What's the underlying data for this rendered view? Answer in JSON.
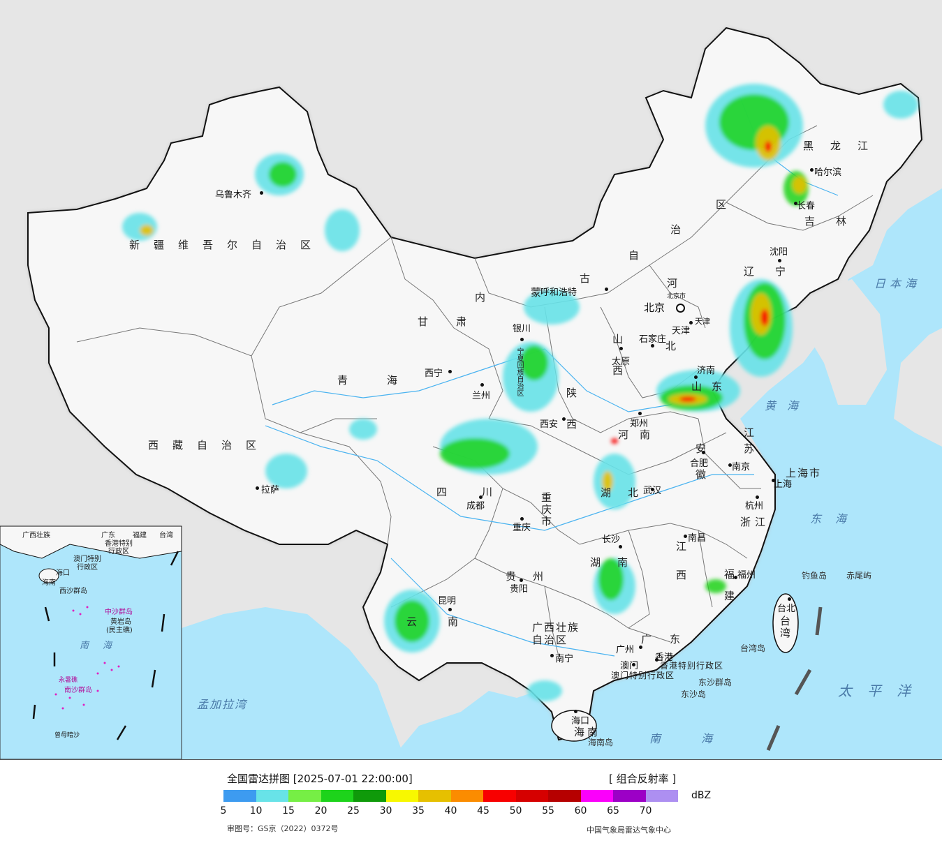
{
  "colors": {
    "ocean": "#aee6fb",
    "land_outside": "#e6e6e6",
    "china_land": "#f7f7f7",
    "border": "#111111",
    "province_line": "#777777"
  },
  "map": {
    "provinces": {
      "xinjiang": "新疆维吾尔自治区",
      "tibet": "西藏自治区",
      "qinghai": "青海",
      "gansu": "甘肃",
      "inner_mongolia_a": "内",
      "inner_mongolia_b": "蒙",
      "inner_mongolia_c": "古",
      "inner_mongolia_d": "自",
      "inner_mongolia_e": "治",
      "inner_mongolia_f": "区",
      "heilongjiang": "黑龙江",
      "jilin": "吉林",
      "liaoning": "辽宁",
      "hebei_a": "河",
      "hebei_b": "北",
      "shanxi": "山西",
      "shaanxi": "陕西",
      "ningxia": "宁夏回族自治区",
      "shandong": "山东",
      "henan": "河南",
      "jiangsu": "江苏",
      "anhui": "安徽",
      "shanghai": "上海市",
      "zhejiang": "浙江",
      "sichuan": "四川",
      "chongqing": "重庆市",
      "hubei": "湖北",
      "hunan": "湖南",
      "jiangxi": "江西",
      "fujian": "福建",
      "guizhou": "贵州",
      "yunnan": "云南",
      "guangxi": "广西壮族自治区",
      "guangdong": "广东",
      "hainan": "海南",
      "taiwan": "台湾",
      "hk": "香港特别行政区",
      "macau": "澳门特别行政区",
      "tianjin_short": "天津",
      "beijing_prov": "北京"
    },
    "cities": {
      "urumqi": "乌鲁木齐",
      "lhasa": "拉萨",
      "xining": "西宁",
      "lanzhou": "兰州",
      "yinchuan": "银川",
      "hohhot": "呼和浩特",
      "beijing_small": "北京市",
      "tianjin": "天津",
      "shijiazhuang": "石家庄",
      "taiyuan": "太原",
      "jinan": "济南",
      "zhengzhou": "郑州",
      "xian": "西安",
      "chengdu": "成都",
      "chongqing": "重庆",
      "wuhan": "武汉",
      "hefei": "合肥",
      "nanjing": "南京",
      "shanghai_city": "上海",
      "hangzhou": "杭州",
      "nanchang": "南昌",
      "changsha": "长沙",
      "fuzhou": "福州",
      "guiyang": "贵阳",
      "kunming": "昆明",
      "nanning": "南宁",
      "guangzhou": "广州",
      "hongkong": "香港",
      "macao": "澳门",
      "haikou": "海口",
      "taipei": "台北",
      "harbin": "哈尔滨",
      "changchun": "长春",
      "shenyang": "沈阳"
    },
    "seas": {
      "japan_sea": "日本海",
      "yellow_sea": "黄海",
      "east_sea": "东海",
      "pacific": "太平洋",
      "south_sea": "南海",
      "bengal": "孟加拉湾",
      "inset_south_sea": "南海"
    },
    "islands": {
      "diaoyu": "钓鱼岛",
      "chiwei": "赤尾屿",
      "taiwan_island": "台湾岛",
      "hainan_island": "海南岛",
      "dongsha": "东沙群岛",
      "dongsha_dao": "东沙岛",
      "inset_xisha": "西沙群岛",
      "inset_zhongsha": "中沙群岛",
      "inset_huangyan": "黄岩岛",
      "inset_minzhu": "(民主礁)",
      "inset_nansha": "南沙群岛",
      "inset_yongshu": "永暑礁",
      "inset_zengmu": "曾母暗沙",
      "inset_haikou": "海口",
      "inset_hainan": "海南",
      "inset_guangxi": "广西壮族",
      "inset_guangdong": "广东",
      "inset_fujian": "福建",
      "inset_taiwan": "台湾",
      "inset_hk": "香港特别",
      "inset_hk2": "行政区",
      "inset_macau": "澳门特别",
      "inset_macau2": "行政区"
    }
  },
  "legend": {
    "title": "全国雷达拼图 [2025-07-01 22:00:00]",
    "product": "[ 组合反射率 ]",
    "unit": "dBZ",
    "colors": [
      "#3d9bf0",
      "#68e3e8",
      "#76ef45",
      "#1dd31b",
      "#0f9a0a",
      "#f8f800",
      "#e6c000",
      "#fb8c00",
      "#f80000",
      "#d60000",
      "#b60000",
      "#fb00fb",
      "#9c00c6",
      "#ad8ff1"
    ],
    "ticks": [
      "5",
      "10",
      "15",
      "20",
      "25",
      "30",
      "35",
      "40",
      "45",
      "50",
      "55",
      "60",
      "65",
      "70"
    ],
    "review_number": "审图号：GS京（2022）0372号",
    "credit": "中国气象局雷达气象中心"
  }
}
